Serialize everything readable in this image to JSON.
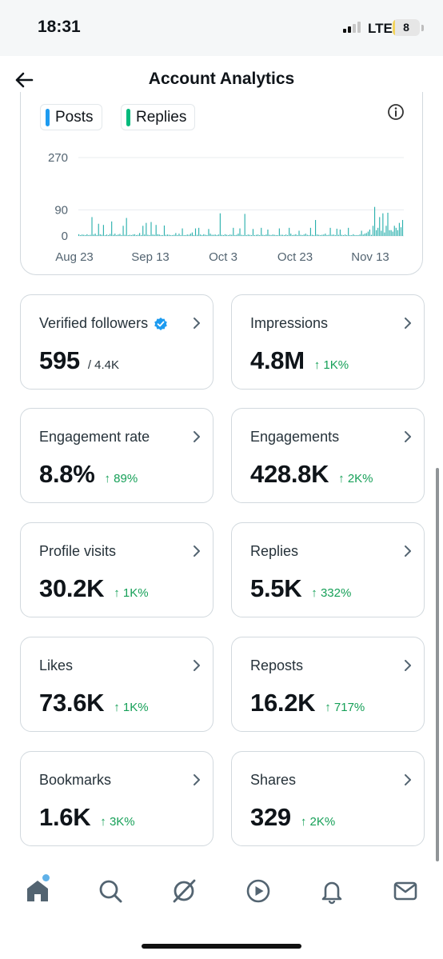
{
  "status_bar": {
    "time": "18:31",
    "network": "LTE",
    "battery": "8",
    "battery_level": 0.08
  },
  "header": {
    "title": "Account Analytics"
  },
  "chart_data": {
    "type": "bar",
    "series": [
      {
        "name": "Posts",
        "values": []
      },
      {
        "name": "Replies",
        "values": [
          6,
          3,
          5,
          4,
          3,
          6,
          3,
          4,
          65,
          5,
          8,
          3,
          42,
          6,
          4,
          38,
          3,
          5,
          3,
          7,
          50,
          4,
          8,
          3,
          5,
          7,
          3,
          35,
          4,
          62,
          2,
          4,
          3,
          5,
          6,
          3,
          4,
          10,
          3,
          35,
          5,
          45,
          4,
          3,
          48,
          5,
          4,
          38,
          6,
          5,
          3,
          3,
          36,
          4,
          5,
          4,
          3,
          3,
          4,
          10,
          3,
          8,
          3,
          26,
          3,
          3,
          5,
          4,
          8,
          12,
          3,
          26,
          4,
          28,
          5,
          3,
          6,
          4,
          3,
          24,
          8,
          4,
          4,
          5,
          3,
          5,
          78,
          4,
          3,
          6,
          4,
          3,
          5,
          4,
          28,
          3,
          4,
          8,
          26,
          4,
          3,
          76,
          3,
          5,
          4,
          3,
          24,
          3,
          4,
          5,
          3,
          28,
          4,
          3,
          5,
          22,
          4,
          3,
          5,
          4,
          3,
          3,
          26,
          4,
          4,
          3,
          5,
          3,
          28,
          8,
          3,
          4,
          6,
          3,
          18,
          4,
          3,
          5,
          8,
          4,
          3,
          28,
          4,
          3,
          55,
          5,
          4,
          3,
          4,
          5,
          8,
          3,
          4,
          28,
          4,
          5,
          3,
          25,
          4,
          22,
          4,
          3,
          5,
          3,
          28,
          3,
          3,
          6,
          3,
          3,
          3,
          5,
          18,
          5,
          8,
          10,
          15,
          22,
          4,
          35,
          100,
          20,
          28,
          65,
          18,
          78,
          12,
          35,
          80,
          20,
          20,
          15,
          35,
          28,
          20,
          45,
          30,
          55
        ]
      }
    ],
    "x_ticks": [
      "Aug 23",
      "Sep 13",
      "Oct 3",
      "Oct 23",
      "Nov 13"
    ],
    "y_ticks": [
      0,
      90,
      270
    ],
    "ylim": [
      0,
      280
    ],
    "colors": {
      "Posts": "#1d9bf0",
      "Replies": "#00ba7c",
      "bars": "#2ab0ad"
    }
  },
  "cards": [
    {
      "label": "Verified followers",
      "value": "595",
      "suffix": "/ 4.4K",
      "change": "",
      "verified": true
    },
    {
      "label": "Impressions",
      "value": "4.8M",
      "suffix": "",
      "change": "↑ 1K%"
    },
    {
      "label": "Engagement rate",
      "value": "8.8%",
      "suffix": "",
      "change": "↑ 89%"
    },
    {
      "label": "Engagements",
      "value": "428.8K",
      "suffix": "",
      "change": "↑ 2K%"
    },
    {
      "label": "Profile visits",
      "value": "30.2K",
      "suffix": "",
      "change": "↑ 1K%"
    },
    {
      "label": "Replies",
      "value": "5.5K",
      "suffix": "",
      "change": "↑ 332%"
    },
    {
      "label": "Likes",
      "value": "73.6K",
      "suffix": "",
      "change": "↑ 1K%"
    },
    {
      "label": "Reposts",
      "value": "16.2K",
      "suffix": "",
      "change": "↑ 717%"
    },
    {
      "label": "Bookmarks",
      "value": "1.6K",
      "suffix": "",
      "change": "↑ 3K%"
    },
    {
      "label": "Shares",
      "value": "329",
      "suffix": "",
      "change": "↑ 2K%"
    }
  ],
  "nav": [
    "home-icon",
    "search-icon",
    "grok-icon",
    "video-icon",
    "notifications-icon",
    "messages-icon"
  ]
}
